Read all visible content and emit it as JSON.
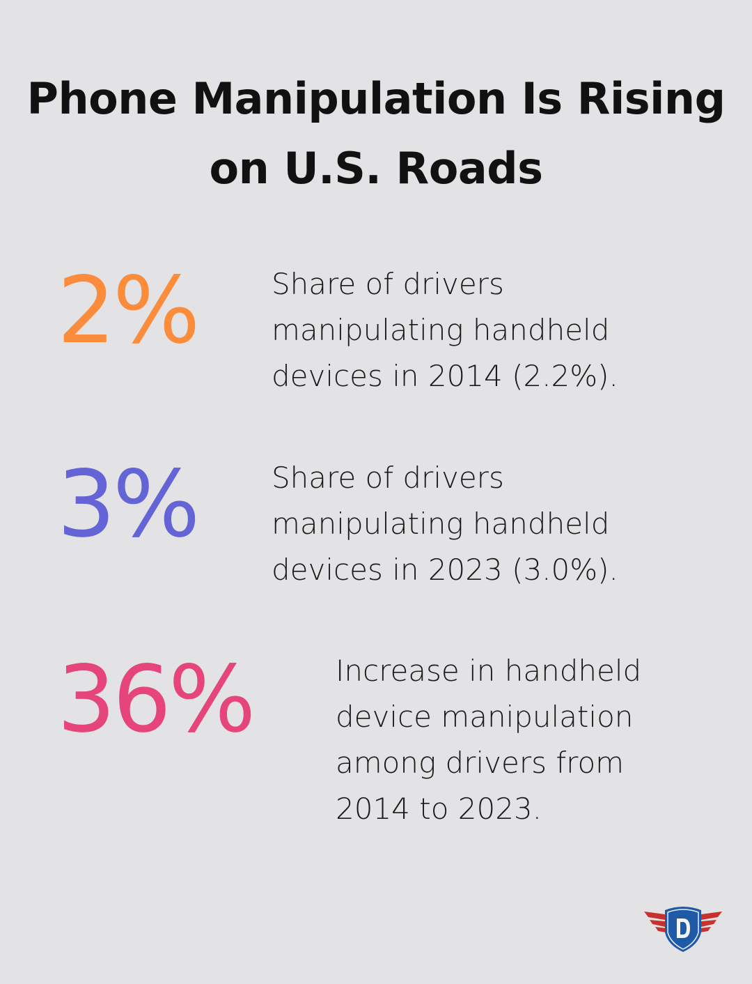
{
  "title": "Phone Manipulation Is Rising on U.S. Roads",
  "stats": [
    {
      "value": "2%",
      "description": "Share of drivers manipulating handheld devices in 2014 (2.2%).",
      "color": "#fb8c3c"
    },
    {
      "value": "3%",
      "description": "Share of drivers manipulating handheld devices in 2023 (3.0%).",
      "color": "#6464d6"
    },
    {
      "value": "36%",
      "description": "Increase in handheld device manipulation among drivers from 2014 to 2023.",
      "color": "#e5457a"
    }
  ],
  "logo": {
    "letter": "D",
    "shield_color": "#1f5aa6",
    "wing_color": "#c8322e"
  }
}
